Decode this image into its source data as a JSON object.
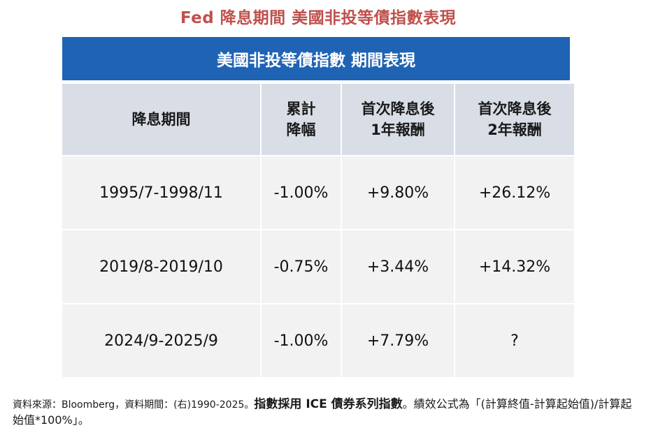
{
  "title": "Fed 降息期間  美國非投等債指數表現",
  "banner": "美國非投等債指數 期間表現",
  "headers": {
    "period": "降息期間",
    "cum_line1": "累計",
    "cum_line2": "降幅",
    "y1_line1": "首次降息後",
    "y1_line2": "1年報酬",
    "y2_line1": "首次降息後",
    "y2_line2": "2年報酬"
  },
  "rows": [
    {
      "period": "1995/7-1998/11",
      "cut": "-1.00%",
      "y1": "+9.80%",
      "y2": "+26.12%"
    },
    {
      "period": "2019/8-2019/10",
      "cut": "-0.75%",
      "y1": "+3.44%",
      "y2": "+14.32%"
    },
    {
      "period": "2024/9-2025/9",
      "cut": "-1.00%",
      "y1": "+7.79%",
      "y2": "?"
    }
  ],
  "footer": {
    "source": "資料來源：Bloomberg，資料期間：(右)1990-2025。",
    "index_note": "指數採用 ICE 債券系列指數",
    "formula": "。績效公式為「(計算終值-計算起始值)/計算起始值*100%」。"
  }
}
